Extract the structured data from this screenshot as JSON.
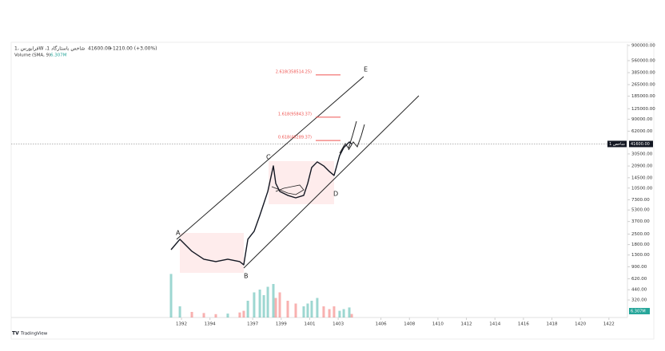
{
  "chart_data": {
    "type": "line",
    "title": "فرابورس ،1W ،شاخص باستارگاد 1",
    "change": "+1210.00 (+3.00%)",
    "volume_title": "Volume",
    "volume_params": "(SMA, 9)",
    "volume_last": "6.307M",
    "price_tag": "شاخص 1",
    "brand": "TradingView",
    "log_scale": true,
    "line_color": "#131722",
    "up_color": "#26a69a",
    "down_color": "#ef5350",
    "last_price": {
      "value": 41600,
      "label": "41600.00"
    },
    "x": [
      1391.27,
      1391.89,
      1392.73,
      1393.57,
      1394.41,
      1395.25,
      1396.09,
      1396.37,
      1396.66,
      1397.1,
      1397.5,
      1397.78,
      1398.06,
      1398.45,
      1398.62,
      1398.9,
      1399.46,
      1400.02,
      1400.58,
      1400.86,
      1401.14,
      1401.53,
      1401.98,
      1402.38,
      1402.71,
      1403.1,
      1403.39,
      1403.78,
      1403.95
    ],
    "series": [
      {
        "name": "Price",
        "values": [
          1535,
          2123,
          1462,
          1140,
          1057,
          1140,
          1057,
          957,
          2123,
          2723,
          4477,
          6501,
          9462,
          20990,
          12140,
          9462,
          8356,
          7745,
          8356,
          12140,
          19950,
          23770,
          20990,
          17620,
          15560,
          28970,
          37150,
          44260,
          41600
        ]
      },
      {
        "name": "Volume",
        "values": [
          78,
          20,
          10,
          8,
          6,
          7,
          9,
          12,
          30,
          45,
          50,
          40,
          55,
          60,
          35,
          45,
          30,
          25,
          20,
          25,
          30,
          35,
          20,
          15,
          20,
          12,
          15,
          18,
          6.307
        ]
      }
    ],
    "xlim": [
      1380.05,
      1423.3
    ],
    "xticks": [
      1392,
      1394,
      1397,
      1399,
      1401,
      1403,
      1406,
      1408,
      1410,
      1412,
      1414,
      1416,
      1418,
      1420,
      1422
    ],
    "ylim": [
      185,
      945000
    ],
    "vlim": [
      0,
      100
    ],
    "yticks": [
      {
        "value": 900000,
        "label": "900000.00"
      },
      {
        "value": 560000,
        "label": "560000.00"
      },
      {
        "value": 385000,
        "label": "385000.00"
      },
      {
        "value": 265000,
        "label": "265000.00"
      },
      {
        "value": 185000,
        "label": "185000.00"
      },
      {
        "value": 125000,
        "label": "125000.00"
      },
      {
        "value": 90000,
        "label": "90000.00"
      },
      {
        "value": 62000,
        "label": "62000.00"
      },
      {
        "value": 30500,
        "label": "30500.00"
      },
      {
        "value": 20900,
        "label": "20900.00"
      },
      {
        "value": 14500,
        "label": "14500.00"
      },
      {
        "value": 10500,
        "label": "10500.00"
      },
      {
        "value": 7300,
        "label": "7300.00"
      },
      {
        "value": 5300,
        "label": "5300.00"
      },
      {
        "value": 3700,
        "label": "3700.00"
      },
      {
        "value": 2500,
        "label": "2500.00"
      },
      {
        "value": 1800,
        "label": "1800.00"
      },
      {
        "value": 1300,
        "label": "1300.00"
      },
      {
        "value": 900,
        "label": "900.00"
      },
      {
        "value": 620,
        "label": "620.00"
      },
      {
        "value": 440,
        "label": "440.00"
      },
      {
        "value": 320,
        "label": "320.00"
      }
    ],
    "fib_levels": [
      {
        "label": "2.618(358514.25)",
        "value": 358514.25
      },
      {
        "label": "1.618(95843.37)",
        "value": 95843.37
      },
      {
        "label": "0.618(46289.37)",
        "value": 46289.37
      }
    ],
    "wave_labels": [
      "A",
      "B",
      "C",
      "D",
      "E"
    ]
  }
}
